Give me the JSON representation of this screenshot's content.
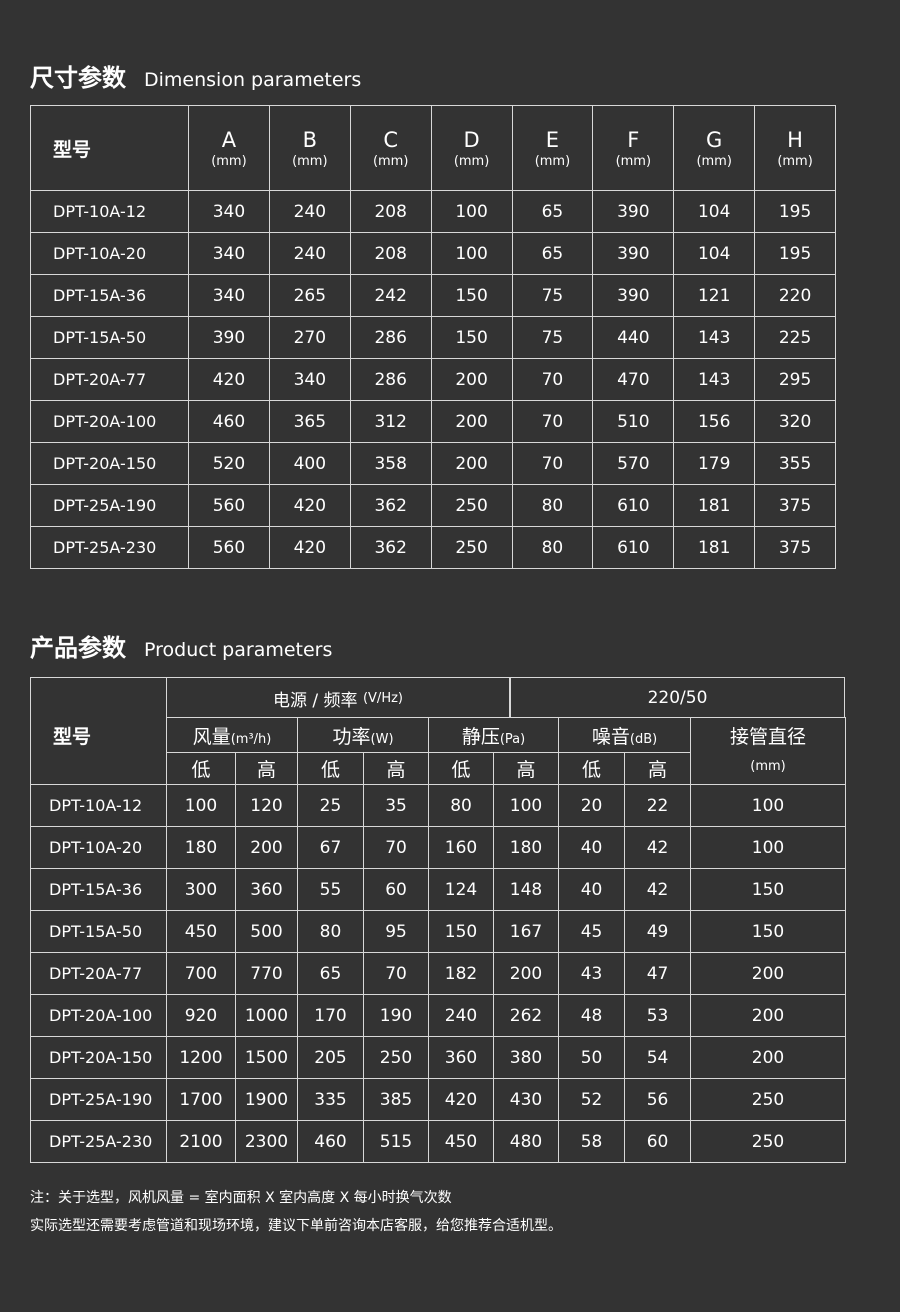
{
  "dimension": {
    "title_cn": "尺寸参数",
    "title_en": "Dimension parameters",
    "model_header": "型号",
    "columns": [
      {
        "label": "A",
        "unit": "(mm)"
      },
      {
        "label": "B",
        "unit": "(mm)"
      },
      {
        "label": "C",
        "unit": "(mm)"
      },
      {
        "label": "D",
        "unit": "(mm)"
      },
      {
        "label": "E",
        "unit": "(mm)"
      },
      {
        "label": "F",
        "unit": "(mm)"
      },
      {
        "label": "G",
        "unit": "(mm)"
      },
      {
        "label": "H",
        "unit": "(mm)"
      }
    ],
    "rows": [
      [
        "DPT-10A-12",
        "340",
        "240",
        "208",
        "100",
        "65",
        "390",
        "104",
        "195"
      ],
      [
        "DPT-10A-20",
        "340",
        "240",
        "208",
        "100",
        "65",
        "390",
        "104",
        "195"
      ],
      [
        "DPT-15A-36",
        "340",
        "265",
        "242",
        "150",
        "75",
        "390",
        "121",
        "220"
      ],
      [
        "DPT-15A-50",
        "390",
        "270",
        "286",
        "150",
        "75",
        "440",
        "143",
        "225"
      ],
      [
        "DPT-20A-77",
        "420",
        "340",
        "286",
        "200",
        "70",
        "470",
        "143",
        "295"
      ],
      [
        "DPT-20A-100",
        "460",
        "365",
        "312",
        "200",
        "70",
        "510",
        "156",
        "320"
      ],
      [
        "DPT-20A-150",
        "520",
        "400",
        "358",
        "200",
        "70",
        "570",
        "179",
        "355"
      ],
      [
        "DPT-25A-190",
        "560",
        "420",
        "362",
        "250",
        "80",
        "610",
        "181",
        "375"
      ],
      [
        "DPT-25A-230",
        "560",
        "420",
        "362",
        "250",
        "80",
        "610",
        "181",
        "375"
      ]
    ]
  },
  "product": {
    "title_cn": "产品参数",
    "title_en": "Product parameters",
    "model_header": "型号",
    "power_label": "电源 / 频率",
    "power_unit": "(V/Hz)",
    "power_value": "220/50",
    "groups": [
      {
        "label": "风量",
        "unit": "(m³/h)"
      },
      {
        "label": "功率",
        "unit": "(W)"
      },
      {
        "label": "静压",
        "unit": "(Pa)"
      },
      {
        "label": "噪音",
        "unit": "(dB)"
      }
    ],
    "pipe_label": "接管直径",
    "pipe_unit": "(mm)",
    "low": "低",
    "high": "高",
    "rows": [
      [
        "DPT-10A-12",
        "100",
        "120",
        "25",
        "35",
        "80",
        "100",
        "20",
        "22",
        "100"
      ],
      [
        "DPT-10A-20",
        "180",
        "200",
        "67",
        "70",
        "160",
        "180",
        "40",
        "42",
        "100"
      ],
      [
        "DPT-15A-36",
        "300",
        "360",
        "55",
        "60",
        "124",
        "148",
        "40",
        "42",
        "150"
      ],
      [
        "DPT-15A-50",
        "450",
        "500",
        "80",
        "95",
        "150",
        "167",
        "45",
        "49",
        "150"
      ],
      [
        "DPT-20A-77",
        "700",
        "770",
        "65",
        "70",
        "182",
        "200",
        "43",
        "47",
        "200"
      ],
      [
        "DPT-20A-100",
        "920",
        "1000",
        "170",
        "190",
        "240",
        "262",
        "48",
        "53",
        "200"
      ],
      [
        "DPT-20A-150",
        "1200",
        "1500",
        "205",
        "250",
        "360",
        "380",
        "50",
        "54",
        "200"
      ],
      [
        "DPT-25A-190",
        "1700",
        "1900",
        "335",
        "385",
        "420",
        "430",
        "52",
        "56",
        "250"
      ],
      [
        "DPT-25A-230",
        "2100",
        "2300",
        "460",
        "515",
        "450",
        "480",
        "58",
        "60",
        "250"
      ]
    ]
  },
  "notes": [
    "注：关于选型，风机风量 = 室内面积 X 室内高度 X 每小时换气次数",
    "实际选型还需要考虑管道和现场环境，建议下单前咨询本店客服，给您推荐合适机型。"
  ]
}
